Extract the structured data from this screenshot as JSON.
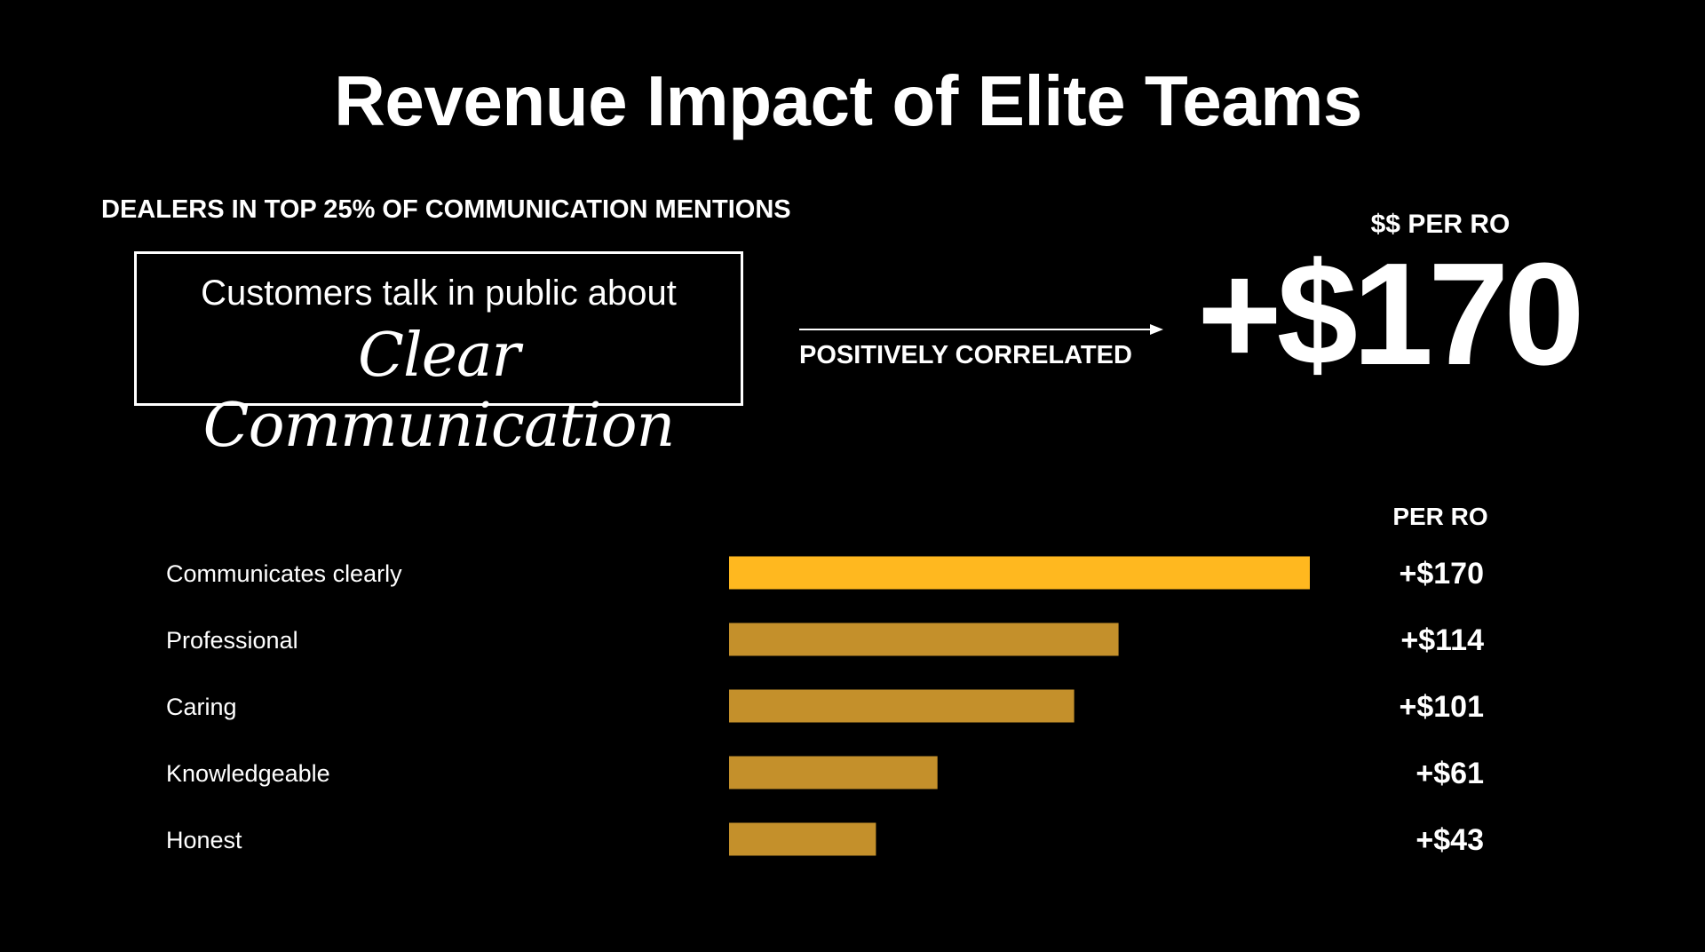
{
  "title": "Revenue Impact of Elite Teams",
  "dealers_label": "DEALERS IN TOP 25% OF COMMUNICATION MENTIONS",
  "quote": {
    "line1": "Customers talk in public about",
    "line2": "Clear Communication"
  },
  "correlation_label": "POSITIVELY CORRELATED",
  "headline": {
    "label": "$$ PER RO",
    "value": "+$170"
  },
  "colors": {
    "highlight": "#FFB81F",
    "bar": "#C4902B",
    "background": "#000000",
    "text": "#FFFFFF"
  },
  "chart_data": {
    "type": "bar",
    "orientation": "horizontal",
    "column_header": "PER RO",
    "categories": [
      "Communicates clearly",
      "Professional",
      "Caring",
      "Knowledgeable",
      "Honest"
    ],
    "values": [
      170,
      114,
      101,
      61,
      43
    ],
    "value_labels": [
      "+$170",
      "+$114",
      "+$101",
      "+$61",
      "+$43"
    ],
    "highlight_index": 0,
    "grid": false
  }
}
